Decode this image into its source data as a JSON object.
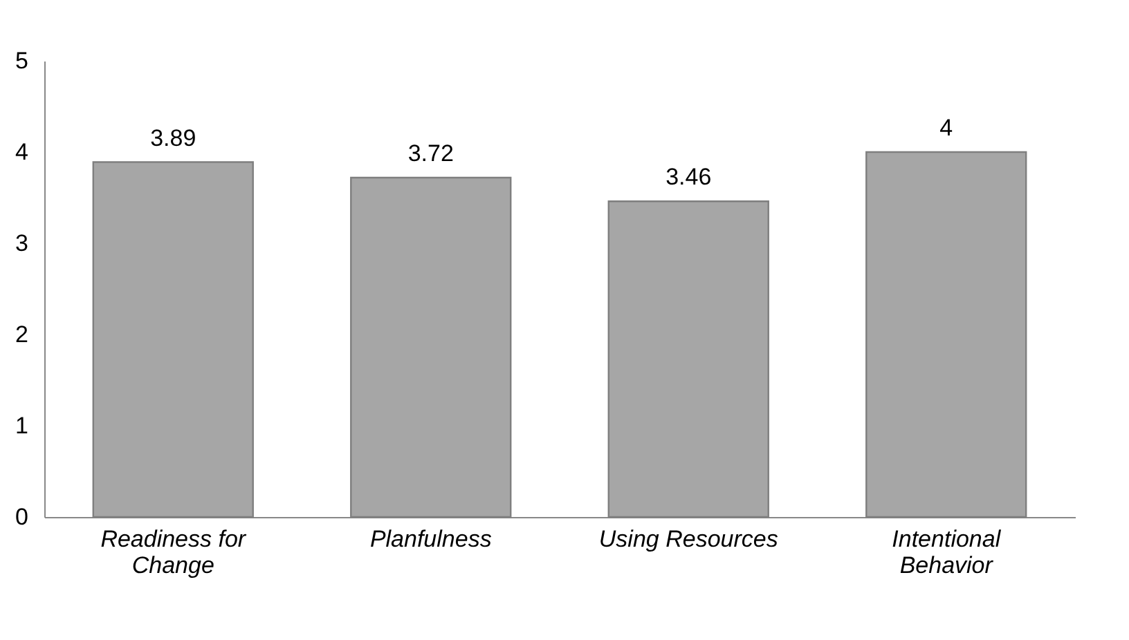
{
  "chart_data": {
    "type": "bar",
    "categories": [
      "Readiness for Change",
      "Planfulness",
      "Using Resources",
      "Intentional Behavior"
    ],
    "values": [
      3.89,
      3.72,
      3.46,
      4
    ],
    "color": "#a6a6a6",
    "ylim": [
      0,
      5
    ],
    "yticks": [
      0,
      1,
      2,
      3,
      4,
      5
    ],
    "data_labels": true,
    "grid": false
  }
}
